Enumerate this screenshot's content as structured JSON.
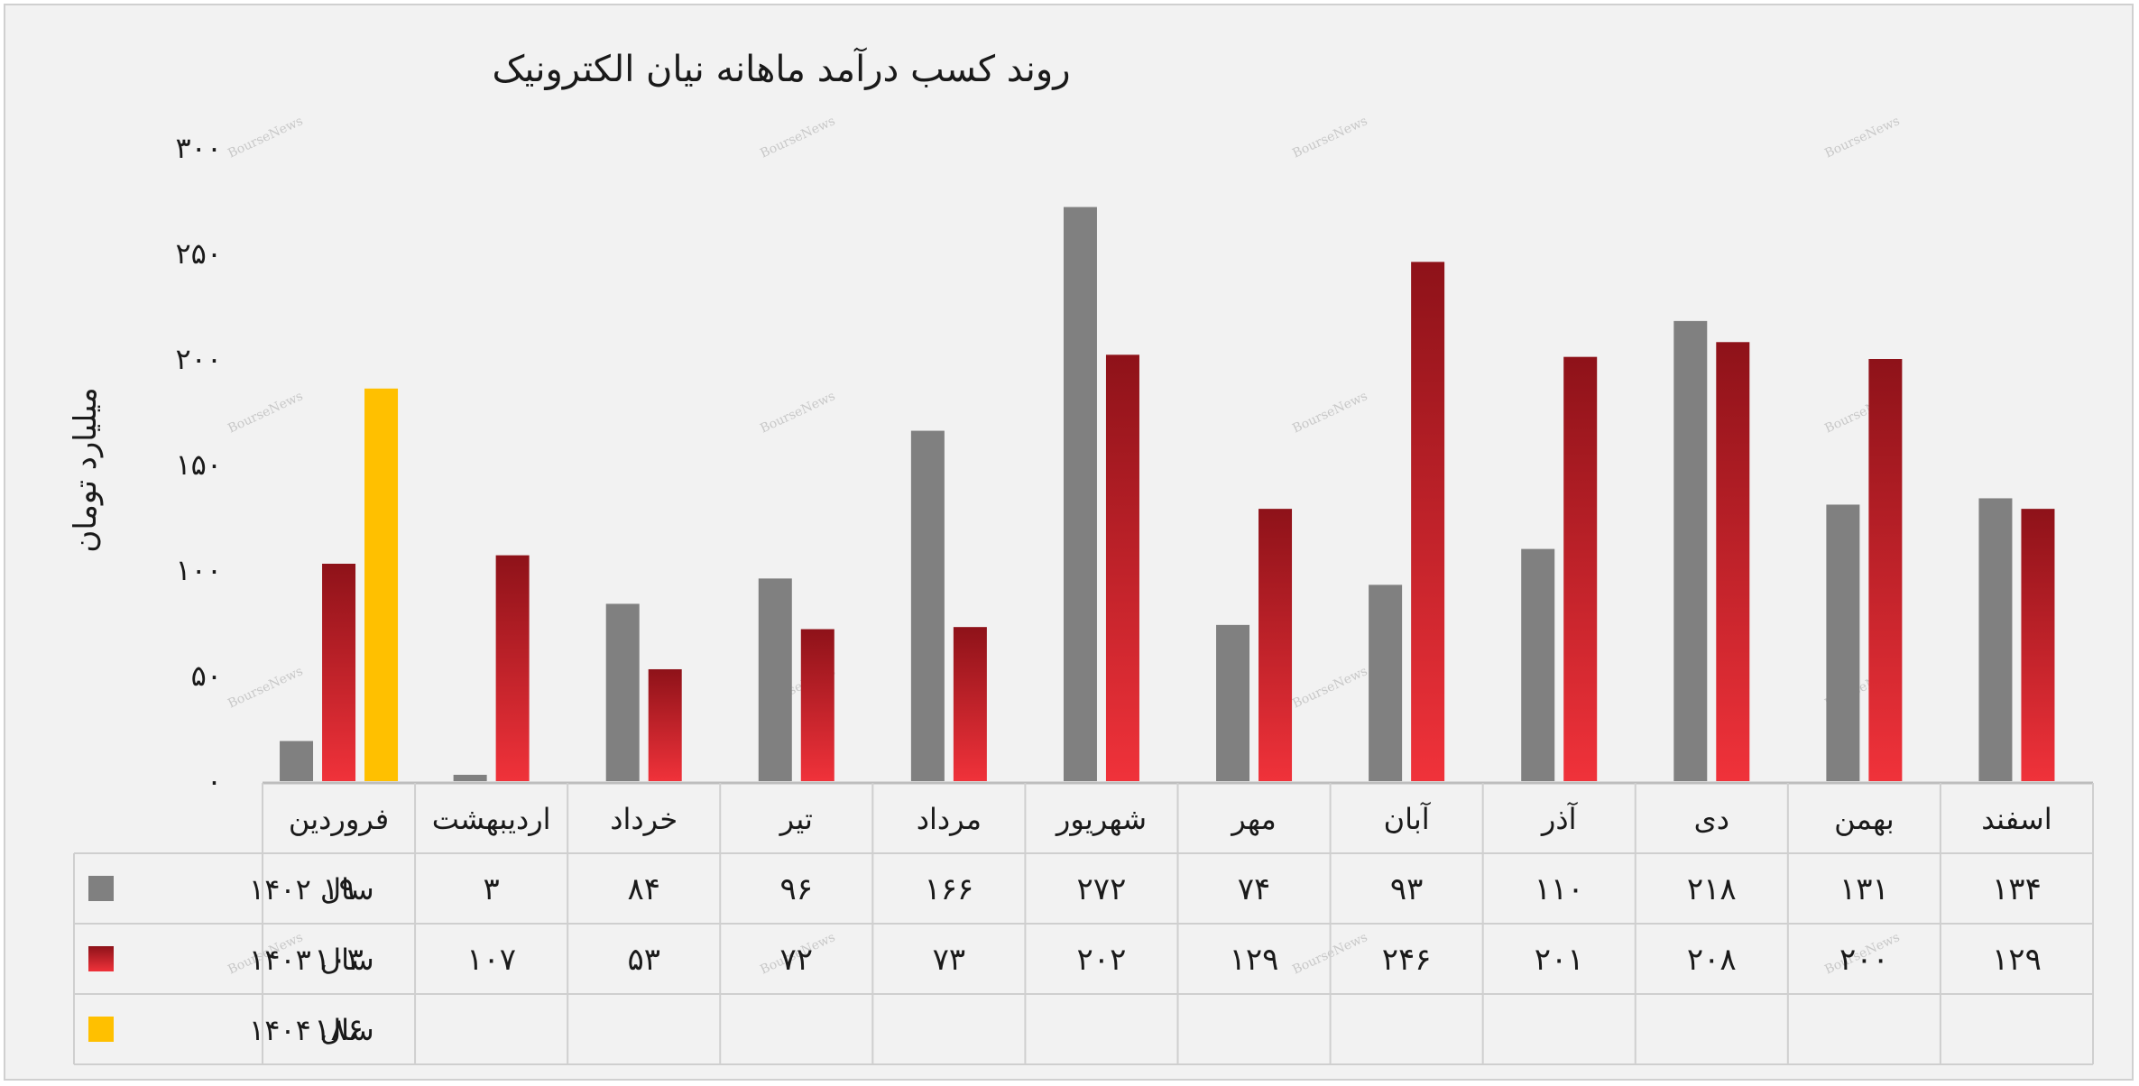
{
  "chart_data": {
    "type": "bar",
    "title": "روند کسب درآمد ماهانه نیان الکترونیک",
    "ylabel": "میلیارد تومان",
    "ylim": [
      0,
      300
    ],
    "yticks": [
      "۰",
      "۵۰",
      "۱۰۰",
      "۱۵۰",
      "۲۰۰",
      "۲۵۰",
      "۳۰۰"
    ],
    "ytick_values": [
      0,
      50,
      100,
      150,
      200,
      250,
      300
    ],
    "categories": [
      "فروردین",
      "اردیبهشت",
      "خرداد",
      "تیر",
      "مرداد",
      "شهریور",
      "مهر",
      "آبان",
      "آذر",
      "دی",
      "بهمن",
      "اسفند"
    ],
    "series": [
      {
        "name": "سال ۱۴۰۲",
        "color": "#808080",
        "values": [
          19,
          3,
          84,
          96,
          166,
          272,
          74,
          93,
          110,
          218,
          131,
          134
        ],
        "labels": [
          "۱۹",
          "۳",
          "۸۴",
          "۹۶",
          "۱۶۶",
          "۲۷۲",
          "۷۴",
          "۹۳",
          "۱۱۰",
          "۲۱۸",
          "۱۳۱",
          "۱۳۴"
        ]
      },
      {
        "name": "سال ۱۴۰۳",
        "color": "#c8102e",
        "values": [
          103,
          107,
          53,
          72,
          73,
          202,
          129,
          246,
          201,
          208,
          200,
          129
        ],
        "labels": [
          "۱۰۳",
          "۱۰۷",
          "۵۳",
          "۷۲",
          "۷۳",
          "۲۰۲",
          "۱۲۹",
          "۲۴۶",
          "۲۰۱",
          "۲۰۸",
          "۲۰۰",
          "۱۲۹"
        ]
      },
      {
        "name": "سال ۱۴۰۴",
        "color": "#ffc000",
        "values": [
          186,
          null,
          null,
          null,
          null,
          null,
          null,
          null,
          null,
          null,
          null,
          null
        ],
        "labels": [
          "۱۸۶",
          "",
          "",
          "",
          "",
          "",
          "",
          "",
          "",
          "",
          "",
          ""
        ]
      }
    ],
    "legend": "table-left",
    "grid": false,
    "watermark": "BourseNews"
  }
}
